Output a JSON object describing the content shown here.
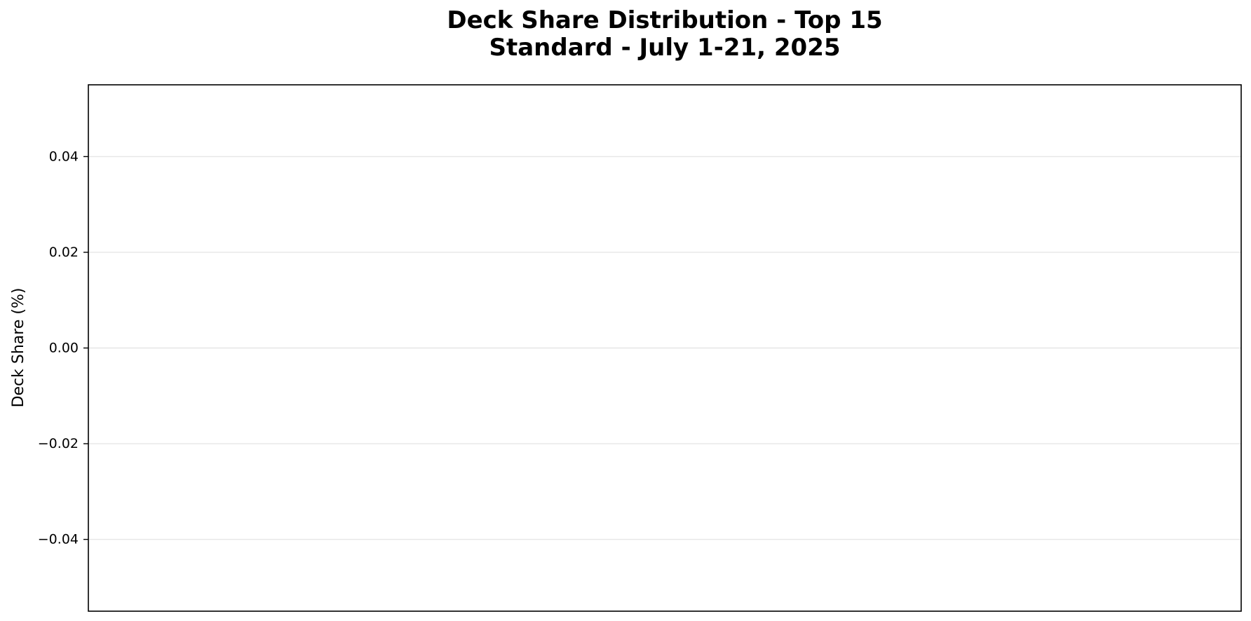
{
  "chart_data": {
    "type": "bar",
    "title_lines": [
      "Deck Share Distribution - Top 15",
      "Standard - July 1-21, 2025"
    ],
    "xlabel": "",
    "ylabel": "Deck Share (%)",
    "categories": [],
    "values": [],
    "ylim": [
      -0.055,
      0.055
    ],
    "yticks": [
      0.04,
      0.02,
      0.0,
      -0.02,
      -0.04
    ],
    "ytick_labels": [
      "0.04",
      "0.02",
      "0.00",
      "−0.02",
      "−0.04"
    ],
    "grid": "y",
    "legend": "none"
  },
  "colors": {
    "grid": "#e6e6e6",
    "frame": "#000000",
    "text": "#000000",
    "background": "#ffffff"
  }
}
